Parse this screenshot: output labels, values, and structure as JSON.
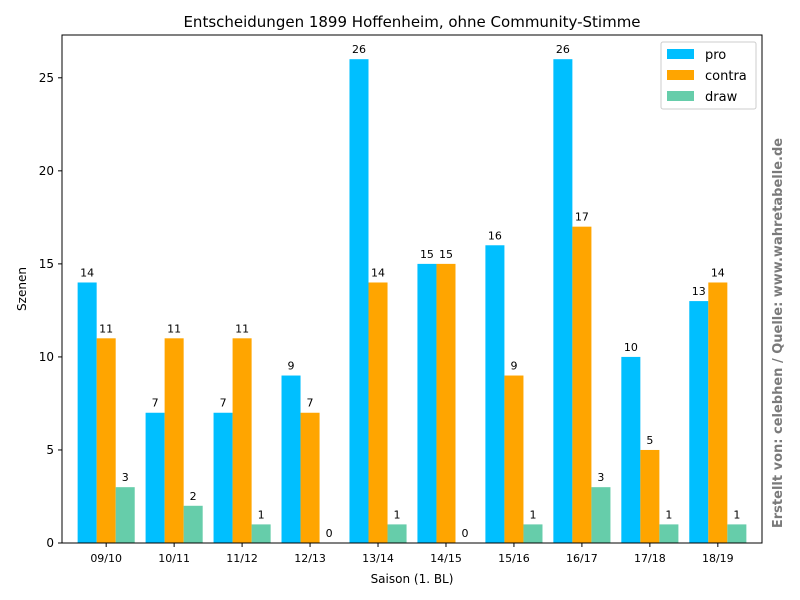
{
  "chart_data": {
    "type": "bar",
    "title": "Entscheidungen 1899 Hoffenheim, ohne Community-Stimme",
    "xlabel": "Saison (1. BL)",
    "ylabel": "Szenen",
    "ylim": [
      0,
      27.3
    ],
    "yticks": [
      "0",
      "5",
      "10",
      "15",
      "20",
      "25"
    ],
    "categories": [
      "09/10",
      "10/11",
      "11/12",
      "12/13",
      "13/14",
      "14/15",
      "15/16",
      "16/17",
      "17/18",
      "18/19"
    ],
    "series": [
      {
        "name": "pro",
        "color": "#00bfff",
        "values": [
          14,
          7,
          7,
          9,
          26,
          15,
          16,
          26,
          10,
          13
        ]
      },
      {
        "name": "contra",
        "color": "#ffa500",
        "values": [
          11,
          11,
          11,
          7,
          14,
          15,
          9,
          17,
          5,
          14
        ]
      },
      {
        "name": "draw",
        "color": "#66cdaa",
        "values": [
          3,
          2,
          1,
          0,
          1,
          0,
          1,
          3,
          1,
          1
        ]
      }
    ],
    "legend_position": "top-right",
    "grid": false
  },
  "watermark": "Erstellt von: celebhen / Quelle: www.wahretabelle.de"
}
